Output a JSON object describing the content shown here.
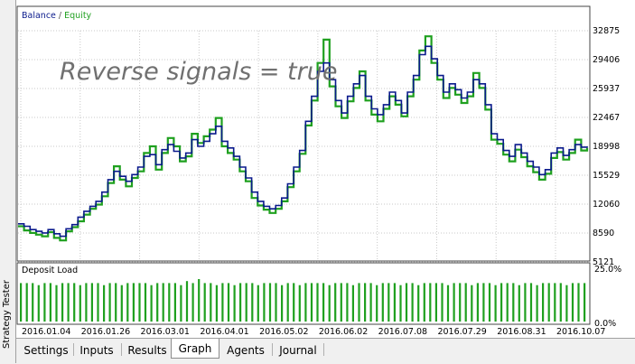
{
  "side_panel": {
    "label": "Strategy Tester"
  },
  "legend": {
    "balance_label": "Balance",
    "separator": " / ",
    "equity_label": "Equity"
  },
  "overlay_text": "Reverse signals = true",
  "deposit_load": {
    "label": "Deposit Load",
    "y_ticks": [
      "25.0%",
      "0.0%"
    ]
  },
  "tabs": [
    {
      "label": "Settings",
      "active": false
    },
    {
      "label": "Inputs",
      "active": false
    },
    {
      "label": "Results",
      "active": false
    },
    {
      "label": "Graph",
      "active": true
    },
    {
      "label": "Agents",
      "active": false
    },
    {
      "label": "Journal",
      "active": false
    }
  ],
  "colors": {
    "balance": "#0a1a8c",
    "equity": "#1fa01f",
    "load": "#1fa01f",
    "grid": "#c8c8c8"
  },
  "chart_data": {
    "type": "line",
    "title": "",
    "y_ticks": [
      32875,
      29406,
      25937,
      22467,
      18998,
      15529,
      12060,
      8590,
      5121
    ],
    "ylim": [
      5121,
      32875
    ],
    "x_ticks": [
      "2016.01.04",
      "2016.01.26",
      "2016.03.01",
      "2016.04.01",
      "2016.05.02",
      "2016.06.02",
      "2016.07.08",
      "2016.07.29",
      "2016.08.31",
      "2016.10.07"
    ],
    "series": [
      {
        "name": "Balance",
        "values": [
          9700,
          9400,
          9000,
          8800,
          8600,
          9000,
          8500,
          8200,
          9100,
          9600,
          10500,
          11200,
          11800,
          12400,
          13500,
          15000,
          16000,
          15400,
          14800,
          15600,
          16500,
          17800,
          18000,
          16800,
          18600,
          19200,
          18400,
          17600,
          18200,
          19800,
          19000,
          19600,
          20500,
          21400,
          19600,
          18800,
          17800,
          16500,
          15200,
          13500,
          12400,
          11800,
          11500,
          11900,
          12800,
          14500,
          16500,
          18500,
          22000,
          25000,
          28000,
          29000,
          27000,
          24500,
          23000,
          25000,
          26500,
          27500,
          25000,
          23500,
          22800,
          24000,
          25500,
          24500,
          23000,
          25500,
          27500,
          30000,
          31000,
          29500,
          27500,
          25500,
          26500,
          25800,
          24800,
          25500,
          27000,
          26500,
          24000,
          20500,
          19800,
          18500,
          17800,
          19200,
          18200,
          17200,
          16500,
          15600,
          16200,
          18200,
          18800,
          17900,
          18600,
          19200,
          18900,
          19000
        ]
      },
      {
        "name": "Equity",
        "values": [
          9400,
          8900,
          8600,
          8400,
          8200,
          8700,
          8000,
          7700,
          8800,
          9300,
          10000,
          10800,
          11500,
          12000,
          13000,
          14600,
          16600,
          15000,
          14200,
          15200,
          16000,
          18200,
          19000,
          16200,
          18200,
          20000,
          19000,
          17200,
          17800,
          20500,
          19400,
          20200,
          21000,
          22400,
          19000,
          18200,
          17400,
          16000,
          14800,
          12800,
          11900,
          11400,
          11000,
          11500,
          12400,
          14100,
          16000,
          18100,
          21500,
          24500,
          29000,
          31800,
          26200,
          23800,
          22400,
          24400,
          26000,
          28000,
          24500,
          22800,
          22000,
          23500,
          25000,
          24000,
          22600,
          25000,
          27000,
          30500,
          32200,
          29000,
          27000,
          24800,
          26000,
          25200,
          24200,
          25000,
          27800,
          26000,
          23400,
          19800,
          19300,
          18000,
          17200,
          18600,
          17700,
          16600,
          15900,
          15000,
          15700,
          17600,
          18300,
          17400,
          18200,
          19800,
          18500,
          18800
        ]
      },
      {
        "name": "Deposit Load",
        "values": [
          19,
          19,
          19,
          18,
          19,
          19,
          18,
          19,
          19,
          19,
          18,
          19,
          19,
          19,
          18,
          19,
          19,
          18,
          19,
          19,
          19,
          19,
          18,
          19,
          19,
          19,
          19,
          18,
          20,
          19,
          21,
          19,
          19,
          18,
          19,
          19,
          18,
          19,
          19,
          19,
          18,
          19,
          19,
          19,
          18,
          19,
          19,
          18,
          19,
          19,
          19,
          19,
          18,
          19,
          19,
          19,
          18,
          19,
          19,
          19,
          18,
          19,
          19,
          19,
          18,
          19,
          19,
          18,
          19,
          19,
          19,
          19,
          18,
          19,
          19,
          19,
          18,
          19,
          19,
          19,
          18,
          19,
          19,
          19,
          18,
          19,
          19,
          18,
          19,
          19,
          19,
          19,
          18,
          19,
          19,
          19
        ]
      }
    ],
    "load_ylim": [
      0,
      25
    ]
  }
}
